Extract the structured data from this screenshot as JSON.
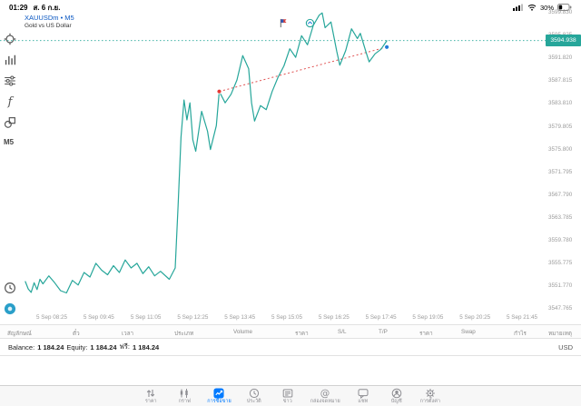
{
  "status_bar": {
    "time": "01:29",
    "date": "ส. 6 ก.ย.",
    "battery_percent": "30%"
  },
  "chart": {
    "title": "XAUUSDm • M5",
    "description": "Gold vs US Dollar",
    "current_price_label": "3594.938",
    "timeframe": "M5"
  },
  "toolbar": {
    "timeframe": "M5",
    "top_items": [
      {
        "name": "crosshair-button",
        "icon": "crosshair-icon"
      },
      {
        "name": "indicators-button",
        "icon": "indicator-bars-icon"
      },
      {
        "name": "chart-settings-button",
        "icon": "sliders-icon"
      },
      {
        "name": "functions-button",
        "icon": "function-icon"
      },
      {
        "name": "objects-button",
        "icon": "objects-icon"
      }
    ],
    "bottom_items": [
      {
        "name": "history-button",
        "icon": "history-clock-icon"
      },
      {
        "name": "one-click-trading-button",
        "icon": "one-click-trading-icon"
      }
    ]
  },
  "chart_data": {
    "type": "line",
    "symbol": "XAUUSDm",
    "timeframe": "M5",
    "title": "XAUUSDm M5 — Gold vs US Dollar",
    "line_color": "#26a69a",
    "current_price": 3594.938,
    "y_axis": {
      "labels": [
        "3599.830",
        "3595.825",
        "3591.820",
        "3587.815",
        "3583.810",
        "3579.805",
        "3575.800",
        "3571.795",
        "3567.790",
        "3563.785",
        "3559.780",
        "3555.775",
        "3551.770",
        "3547.765"
      ]
    },
    "x_axis": {
      "labels": [
        "5 Sep 08:25",
        "5 Sep 09:45",
        "5 Sep 11:05",
        "5 Sep 12:25",
        "5 Sep 13:45",
        "5 Sep 15:05",
        "5 Sep 16:25",
        "5 Sep 17:45",
        "5 Sep 19:05",
        "5 Sep 20:25",
        "5 Sep 21:45"
      ]
    },
    "series": [
      {
        "name": "XAUUSDm close",
        "points": [
          [
            "07:40",
            3552.6
          ],
          [
            "07:45",
            3551.3
          ],
          [
            "07:50",
            3550.7
          ],
          [
            "07:55",
            3552.4
          ],
          [
            "08:00",
            3551.2
          ],
          [
            "08:05",
            3553.0
          ],
          [
            "08:10",
            3552.2
          ],
          [
            "08:20",
            3553.6
          ],
          [
            "08:30",
            3552.4
          ],
          [
            "08:40",
            3551.0
          ],
          [
            "08:50",
            3550.6
          ],
          [
            "09:00",
            3552.8
          ],
          [
            "09:10",
            3552.0
          ],
          [
            "09:20",
            3554.2
          ],
          [
            "09:30",
            3553.4
          ],
          [
            "09:40",
            3555.8
          ],
          [
            "09:50",
            3554.6
          ],
          [
            "10:00",
            3553.8
          ],
          [
            "10:10",
            3555.4
          ],
          [
            "10:20",
            3554.2
          ],
          [
            "10:30",
            3556.4
          ],
          [
            "10:40",
            3555.0
          ],
          [
            "10:50",
            3555.8
          ],
          [
            "11:00",
            3554.0
          ],
          [
            "11:10",
            3555.2
          ],
          [
            "11:20",
            3553.6
          ],
          [
            "11:30",
            3554.4
          ],
          [
            "11:45",
            3553.0
          ],
          [
            "11:55",
            3555.0
          ],
          [
            "12:00",
            3566.0
          ],
          [
            "12:05",
            3578.0
          ],
          [
            "12:10",
            3584.5
          ],
          [
            "12:15",
            3581.0
          ],
          [
            "12:20",
            3584.0
          ],
          [
            "12:25",
            3577.5
          ],
          [
            "12:30",
            3575.5
          ],
          [
            "12:40",
            3582.5
          ],
          [
            "12:50",
            3579.0
          ],
          [
            "12:55",
            3575.8
          ],
          [
            "13:05",
            3580.0
          ],
          [
            "13:10",
            3586.0
          ],
          [
            "13:20",
            3584.0
          ],
          [
            "13:30",
            3585.5
          ],
          [
            "13:40",
            3588.0
          ],
          [
            "13:50",
            3592.3
          ],
          [
            "14:00",
            3590.0
          ],
          [
            "14:05",
            3584.0
          ],
          [
            "14:10",
            3580.8
          ],
          [
            "14:20",
            3583.5
          ],
          [
            "14:30",
            3582.8
          ],
          [
            "14:40",
            3586.0
          ],
          [
            "14:50",
            3588.5
          ],
          [
            "15:00",
            3590.5
          ],
          [
            "15:10",
            3593.5
          ],
          [
            "15:20",
            3592.0
          ],
          [
            "15:30",
            3595.8
          ],
          [
            "15:40",
            3594.2
          ],
          [
            "15:50",
            3597.6
          ],
          [
            "16:00",
            3599.4
          ],
          [
            "16:05",
            3599.8
          ],
          [
            "16:10",
            3597.2
          ],
          [
            "16:20",
            3598.2
          ],
          [
            "16:30",
            3593.0
          ],
          [
            "16:35",
            3590.6
          ],
          [
            "16:45",
            3593.2
          ],
          [
            "16:55",
            3597.0
          ],
          [
            "17:05",
            3595.3
          ],
          [
            "17:10",
            3596.2
          ],
          [
            "17:20",
            3592.8
          ],
          [
            "17:25",
            3591.2
          ],
          [
            "17:35",
            3592.6
          ],
          [
            "17:45",
            3593.4
          ],
          [
            "17:55",
            3594.9
          ]
        ]
      }
    ],
    "trendline": {
      "start": {
        "time": "13:10",
        "price": 3586.0
      },
      "end": {
        "time": "17:55",
        "price": 3593.8
      },
      "color": "#e05252",
      "style": "dotted"
    },
    "markers": [
      {
        "name": "trendline-start-dot",
        "time": "13:10",
        "price": 3586.0,
        "color": "#e53935"
      },
      {
        "name": "trendline-end-dot",
        "time": "17:55",
        "price": 3593.8,
        "color": "#1f7bd9"
      }
    ],
    "annotations": [
      {
        "name": "flag-marker",
        "icon": "flag-icon",
        "time": "15:00"
      },
      {
        "name": "circle-marker",
        "icon": "circle-arrow-icon",
        "time": "15:45"
      }
    ],
    "grid": false,
    "legend": false
  },
  "table": {
    "columns": [
      "สัญลักษณ์",
      "ตั๋ว",
      "เวลา",
      "ประเภท",
      "Volume",
      "ราคา",
      "S/L",
      "T/P",
      "ราคา",
      "Swap",
      "กำไร",
      "หมายเหตุ"
    ]
  },
  "account": {
    "balance_label": "Balance:",
    "balance": "1 184.24",
    "equity_label": "Equity:",
    "equity": "1 184.24",
    "free_label": "ฟรี:",
    "free": "1 184.24",
    "currency": "USD"
  },
  "tab_bar": {
    "items": [
      {
        "name": "tab-quotes",
        "label": "ราคา",
        "icon": "quotes-icon",
        "active": false
      },
      {
        "name": "tab-charts",
        "label": "กราฟ",
        "icon": "charts-icon",
        "active": false
      },
      {
        "name": "tab-trade",
        "label": "การซื้อขาย",
        "icon": "trade-icon",
        "active": true
      },
      {
        "name": "tab-history",
        "label": "ประวัติ",
        "icon": "history-icon",
        "active": false
      },
      {
        "name": "tab-news",
        "label": "ข่าว",
        "icon": "news-icon",
        "active": false
      },
      {
        "name": "tab-mailbox",
        "label": "กล่องจดหมาย",
        "icon": "mailbox-icon",
        "active": false
      },
      {
        "name": "tab-chat",
        "label": "แชท",
        "icon": "chat-icon",
        "active": false
      },
      {
        "name": "tab-accounts",
        "label": "บัญชี",
        "icon": "account-icon",
        "active": false
      },
      {
        "name": "tab-settings",
        "label": "การตั้งค่า",
        "icon": "settings-icon",
        "active": false
      }
    ]
  },
  "colors": {
    "teal": "#26a69a",
    "ios_blue": "#007aff",
    "symbol_blue": "#0a57c2",
    "trend_red": "#e05252"
  }
}
